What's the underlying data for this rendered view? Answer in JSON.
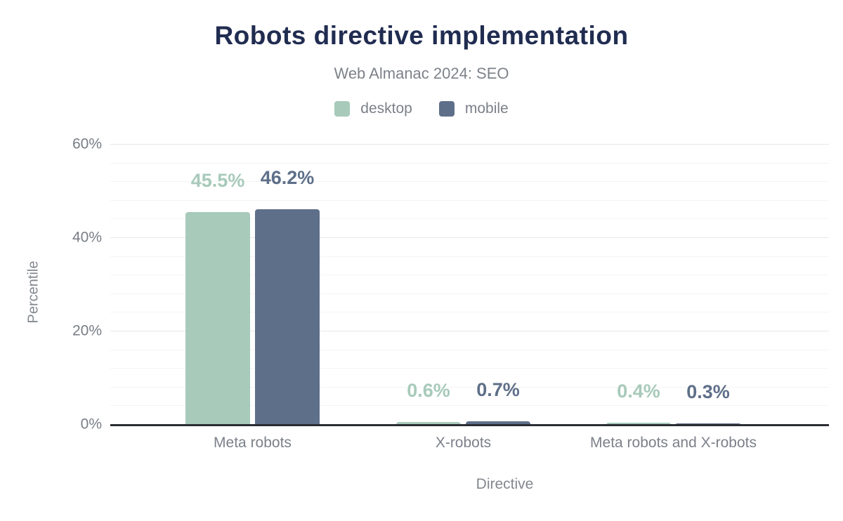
{
  "header": {
    "title": "Robots directive implementation",
    "subtitle": "Web Almanac 2024: SEO"
  },
  "axes": {
    "x_title": "Directive",
    "y_title": "Percentile"
  },
  "colors": {
    "title_navy": "#202c50",
    "desktop_green": "#a8caba",
    "mobile_slate": "#5e6f89",
    "axis_line": "#2b2d33",
    "text_gray": "#7b8089"
  },
  "chart_data": {
    "type": "bar",
    "title": "Robots directive implementation",
    "subtitle": "Web Almanac 2024: SEO",
    "xlabel": "Directive",
    "ylabel": "Percentile",
    "categories": [
      "Meta robots",
      "X-robots",
      "Meta robots and X-robots"
    ],
    "series": [
      {
        "name": "desktop",
        "color": "#a8caba",
        "values": [
          45.5,
          0.6,
          0.4
        ],
        "value_labels": [
          "45.5%",
          "0.6%",
          "0.4%"
        ]
      },
      {
        "name": "mobile",
        "color": "#5e6f89",
        "values": [
          46.2,
          0.7,
          0.3
        ],
        "value_labels": [
          "46.2%",
          "0.7%",
          "0.3%"
        ]
      }
    ],
    "ylim": [
      0,
      60
    ],
    "yticks": [
      {
        "value": 0,
        "label": "0%"
      },
      {
        "value": 20,
        "label": "20%"
      },
      {
        "value": 40,
        "label": "40%"
      },
      {
        "value": 60,
        "label": "60%"
      }
    ],
    "minor_grid_step": 4,
    "grid": true,
    "legend_position": "top"
  }
}
